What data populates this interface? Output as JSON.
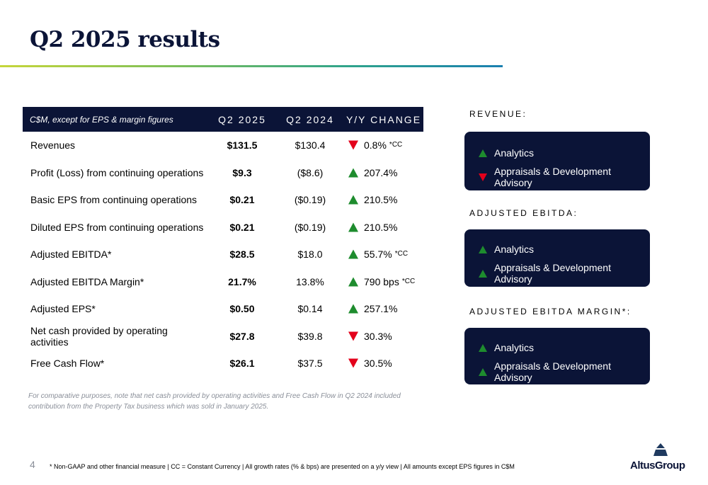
{
  "title": "Q2 2025 results",
  "colors": {
    "navy": "#0b1437",
    "up": "#1e8c2e",
    "down": "#e3001b"
  },
  "table": {
    "header": {
      "label": "C$M, except for EPS & margin figures",
      "q2_2025": "Q2 2025",
      "q2_2024": "Q2 2024",
      "yy": "Y/Y CHANGE"
    },
    "rows": [
      {
        "label": "Revenues",
        "q2_2025": "$131.5",
        "q2_2024": "$130.4",
        "direction": "down",
        "change": "0.8%",
        "note": "*CC"
      },
      {
        "label": "Profit (Loss) from continuing operations",
        "q2_2025": "$9.3",
        "q2_2024": "($8.6)",
        "direction": "up",
        "change": "207.4%",
        "note": ""
      },
      {
        "label": "Basic EPS from continuing operations",
        "q2_2025": "$0.21",
        "q2_2024": "($0.19)",
        "direction": "up",
        "change": "210.5%",
        "note": ""
      },
      {
        "label": "Diluted EPS from continuing operations",
        "q2_2025": "$0.21",
        "q2_2024": "($0.19)",
        "direction": "up",
        "change": "210.5%",
        "note": ""
      },
      {
        "label": "Adjusted EBITDA*",
        "q2_2025": "$28.5",
        "q2_2024": "$18.0",
        "direction": "up",
        "change": "55.7%",
        "note": "*CC"
      },
      {
        "label": "Adjusted EBITDA Margin*",
        "q2_2025": "21.7%",
        "q2_2024": "13.8%",
        "direction": "up",
        "change": "790 bps",
        "note": "*CC"
      },
      {
        "label": "Adjusted EPS*",
        "q2_2025": "$0.50",
        "q2_2024": "$0.14",
        "direction": "up",
        "change": "257.1%",
        "note": ""
      },
      {
        "label": "Net cash provided by operating activities",
        "q2_2025": "$27.8",
        "q2_2024": "$39.8",
        "direction": "down",
        "change": "30.3%",
        "note": ""
      },
      {
        "label": "Free Cash Flow*",
        "q2_2025": "$26.1",
        "q2_2024": "$37.5",
        "direction": "down",
        "change": "30.5%",
        "note": ""
      }
    ]
  },
  "footnote_compare": "For comparative purposes, note that net cash provided by operating activities and Free Cash Flow in Q2 2024 included contribution from the Property Tax business which was sold in January 2025.",
  "page_number": "4",
  "footer_note": "* Non-GAAP and other financial measure | CC = Constant Currency | All growth rates (% & bps) are presented on a y/y view | All amounts except EPS figures in C$M",
  "panels": [
    {
      "heading": "REVENUE:",
      "items": [
        {
          "label": "Analytics",
          "direction": "up"
        },
        {
          "label": "Appraisals & Development Advisory",
          "direction": "down"
        }
      ]
    },
    {
      "heading": "ADJUSTED EBITDA:",
      "items": [
        {
          "label": "Analytics",
          "direction": "up"
        },
        {
          "label": "Appraisals & Development Advisory",
          "direction": "up"
        }
      ]
    },
    {
      "heading": "ADJUSTED EBITDA MARGIN*:",
      "items": [
        {
          "label": "Analytics",
          "direction": "up"
        },
        {
          "label": "Appraisals & Development Advisory",
          "direction": "up"
        }
      ]
    }
  ],
  "logo_text": "AltusGroup"
}
